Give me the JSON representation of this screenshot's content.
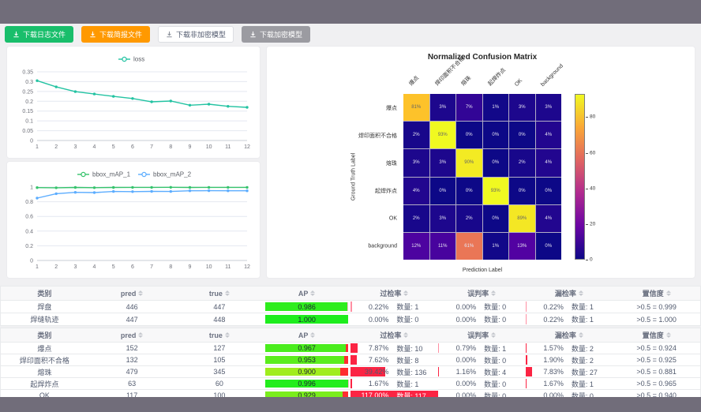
{
  "toolbar": {
    "buttons": [
      {
        "label": "下载日志文件",
        "style": "green"
      },
      {
        "label": "下载简报文件",
        "style": "orange"
      },
      {
        "label": "下载非加密模型",
        "style": "white"
      },
      {
        "label": "下载加密模型",
        "style": "gray"
      }
    ]
  },
  "labels": {
    "count_prefix": "数量:"
  },
  "colors": {
    "green_button": "#19be6b",
    "orange_button": "#ff9900",
    "gray_button": "#9b9ba1",
    "loss_line": "#23c3a2",
    "map1_line": "#36c36c",
    "map2_line": "#5cadff",
    "rate_bar": "#fb2443",
    "ap_rest_small": "#ffb6c9",
    "ap_rest_big": "#ff2d30"
  },
  "chart_data": [
    {
      "type": "line",
      "x": [
        1,
        2,
        3,
        4,
        5,
        6,
        7,
        8,
        9,
        10,
        11,
        12
      ],
      "series": [
        {
          "name": "loss",
          "color": "#23c3a2",
          "values": [
            0.305,
            0.273,
            0.249,
            0.237,
            0.225,
            0.214,
            0.197,
            0.201,
            0.18,
            0.185,
            0.174,
            0.169
          ]
        }
      ],
      "yticks": [
        0,
        0.05,
        0.1,
        0.15,
        0.2,
        0.25,
        0.3,
        0.35
      ],
      "ylim": [
        0,
        0.35
      ],
      "legend_position": "top",
      "grid": true
    },
    {
      "type": "line",
      "x": [
        1,
        2,
        3,
        4,
        5,
        6,
        7,
        8,
        9,
        10,
        11,
        12
      ],
      "series": [
        {
          "name": "bbox_mAP_1",
          "color": "#36c36c",
          "values": [
            0.993,
            0.99,
            0.995,
            0.991,
            0.995,
            0.996,
            0.996,
            0.997,
            0.995,
            0.996,
            0.996,
            0.996
          ]
        },
        {
          "name": "bbox_mAP_2",
          "color": "#5cadff",
          "values": [
            0.85,
            0.91,
            0.928,
            0.925,
            0.94,
            0.938,
            0.941,
            0.94,
            0.95,
            0.951,
            0.95,
            0.949
          ]
        }
      ],
      "yticks": [
        0,
        0.2,
        0.4,
        0.6,
        0.8,
        1
      ],
      "ylim": [
        0,
        1
      ],
      "legend_position": "top",
      "grid": true
    },
    {
      "type": "heatmap",
      "title": "Normalized Confusion Matrix",
      "xlabel": "Prediction Label",
      "ylabel": "Ground Truth Label",
      "labels": [
        "爆点",
        "焊印面积不合格",
        "熔珠",
        "起焊炸点",
        "OK",
        "background"
      ],
      "unit": "%",
      "vmax": 93,
      "colorbar_ticks": [
        0,
        20,
        40,
        60,
        80
      ],
      "values": [
        [
          81,
          3,
          7,
          1,
          3,
          3
        ],
        [
          2,
          93,
          0,
          0,
          0,
          4
        ],
        [
          3,
          3,
          90,
          0,
          2,
          4
        ],
        [
          4,
          0,
          0,
          93,
          0,
          0
        ],
        [
          2,
          3,
          2,
          0,
          89,
          4
        ],
        [
          12,
          11,
          61,
          1,
          13,
          0
        ]
      ]
    }
  ],
  "tables": {
    "headers": [
      "类别",
      "pred",
      "true",
      "AP",
      "过检率",
      "误判率",
      "漏检率",
      "置信度"
    ],
    "groups": [
      {
        "rows": [
          {
            "label": "焊盘",
            "pred": "446",
            "true": "447",
            "ap": 0.986,
            "ap_text": "0.986",
            "rates": [
              {
                "pct": "0.22%",
                "val": 0.22,
                "count": "1"
              },
              {
                "pct": "0.00%",
                "val": 0,
                "count": "0"
              },
              {
                "pct": "0.22%",
                "val": 0.22,
                "count": "1"
              }
            ],
            "conf": ">0.5 = 0.999"
          },
          {
            "label": "焊缝轨迹",
            "pred": "447",
            "true": "448",
            "ap": 1.0,
            "ap_text": "1.000",
            "rates": [
              {
                "pct": "0.00%",
                "val": 0,
                "count": "0"
              },
              {
                "pct": "0.00%",
                "val": 0,
                "count": "0"
              },
              {
                "pct": "0.22%",
                "val": 0.22,
                "count": "1"
              }
            ],
            "conf": ">0.5 = 1.000"
          }
        ]
      },
      {
        "rows": [
          {
            "label": "爆点",
            "pred": "152",
            "true": "127",
            "ap": 0.967,
            "ap_text": "0.967",
            "rates": [
              {
                "pct": "7.87%",
                "val": 7.87,
                "count": "10"
              },
              {
                "pct": "0.79%",
                "val": 0.79,
                "count": "1"
              },
              {
                "pct": "1.57%",
                "val": 1.57,
                "count": "2"
              }
            ],
            "conf": ">0.5 = 0.924"
          },
          {
            "label": "焊印面积不合格",
            "pred": "132",
            "true": "105",
            "ap": 0.953,
            "ap_text": "0.953",
            "rates": [
              {
                "pct": "7.62%",
                "val": 7.62,
                "count": "8"
              },
              {
                "pct": "0.00%",
                "val": 0,
                "count": "0"
              },
              {
                "pct": "1.90%",
                "val": 1.9,
                "count": "2"
              }
            ],
            "conf": ">0.5 = 0.925"
          },
          {
            "label": "熔珠",
            "pred": "479",
            "true": "345",
            "ap": 0.9,
            "ap_text": "0.900",
            "rates": [
              {
                "pct": "39.42%",
                "val": 39.42,
                "count": "136"
              },
              {
                "pct": "1.16%",
                "val": 1.16,
                "count": "4"
              },
              {
                "pct": "7.83%",
                "val": 7.83,
                "count": "27"
              }
            ],
            "conf": ">0.5 = 0.881"
          },
          {
            "label": "起焊炸点",
            "pred": "63",
            "true": "60",
            "ap": 0.996,
            "ap_text": "0.996",
            "rates": [
              {
                "pct": "1.67%",
                "val": 1.67,
                "count": "1"
              },
              {
                "pct": "0.00%",
                "val": 0,
                "count": "0"
              },
              {
                "pct": "1.67%",
                "val": 1.67,
                "count": "1"
              }
            ],
            "conf": ">0.5 = 0.965"
          },
          {
            "label": "OK",
            "pred": "117",
            "true": "100",
            "ap": 0.929,
            "ap_text": "0.929",
            "rates": [
              {
                "pct": "117.00%",
                "val": 117,
                "count": "117"
              },
              {
                "pct": "0.00%",
                "val": 0,
                "count": "0"
              },
              {
                "pct": "0.00%",
                "val": 0,
                "count": "0"
              }
            ],
            "conf": ">0.5 = 0.940"
          }
        ]
      }
    ]
  }
}
